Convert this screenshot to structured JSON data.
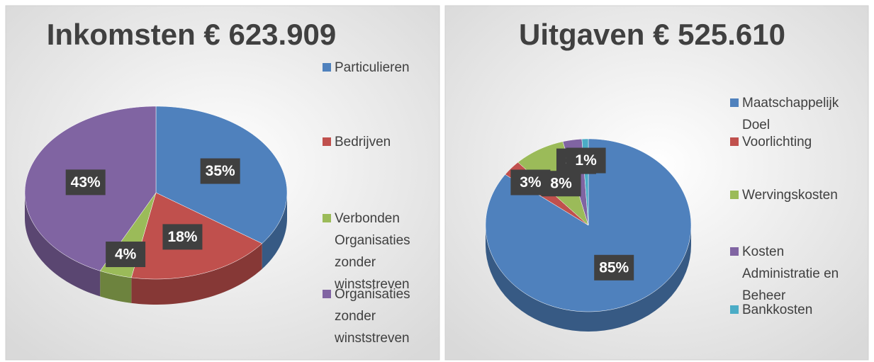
{
  "chart_data": [
    {
      "type": "pie",
      "title": "Inkomsten € 623.909",
      "categories": [
        "Particulieren",
        "Bedrijven",
        "Verbonden Organisaties zonder winststreven",
        "Organisaties zonder winststreven"
      ],
      "values": [
        35,
        18,
        4,
        43
      ],
      "value_labels": [
        "35%",
        "18%",
        "4%",
        "43%"
      ],
      "colors": [
        "#4f81bd",
        "#c0504d",
        "#9bbb59",
        "#8064a2"
      ]
    },
    {
      "type": "pie",
      "title": "Uitgaven € 525.610",
      "categories": [
        "Maatschappelijk Doel",
        "Voorlichting",
        "Wervingskosten",
        "Kosten Administratie en Beheer",
        "Bankkosten"
      ],
      "values": [
        85,
        3,
        8,
        3,
        1
      ],
      "value_labels": [
        "85%",
        "3%",
        "8%",
        "3%",
        "1%"
      ],
      "colors": [
        "#4f81bd",
        "#c0504d",
        "#9bbb59",
        "#8064a2",
        "#4bacc6"
      ]
    }
  ]
}
